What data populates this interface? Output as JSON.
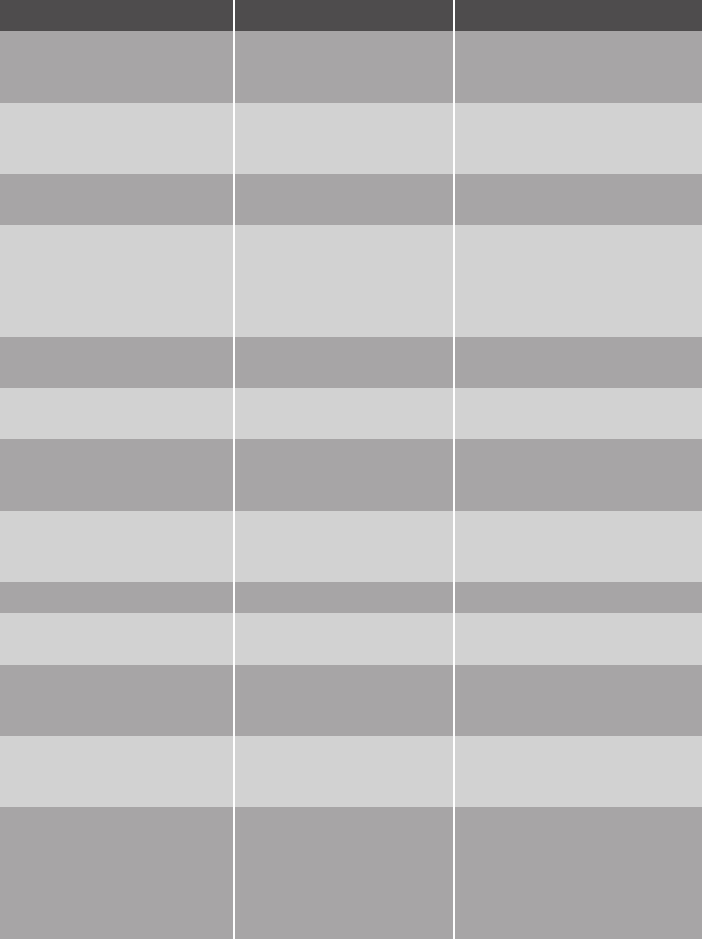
{
  "table": {
    "header": [
      "",
      "",
      ""
    ],
    "rows": [
      {
        "shade": "dark",
        "cells": [
          "",
          "",
          ""
        ]
      },
      {
        "shade": "light",
        "cells": [
          "",
          "",
          ""
        ]
      },
      {
        "shade": "dark",
        "cells": [
          "",
          "",
          ""
        ]
      },
      {
        "shade": "light",
        "cells": [
          "",
          "",
          ""
        ],
        "marks": [
          "0",
          "0"
        ]
      },
      {
        "shade": "dark",
        "cells": [
          "",
          "",
          ""
        ]
      },
      {
        "shade": "light",
        "cells": [
          "",
          "",
          ""
        ]
      },
      {
        "shade": "dark",
        "cells": [
          "",
          "",
          ""
        ]
      },
      {
        "shade": "light",
        "cells": [
          "",
          "",
          ""
        ]
      },
      {
        "shade": "dark",
        "cells": [
          "",
          "",
          ""
        ]
      },
      {
        "shade": "light",
        "cells": [
          "",
          "",
          ""
        ]
      },
      {
        "shade": "dark",
        "cells": [
          "",
          "",
          ""
        ]
      },
      {
        "shade": "light",
        "cells": [
          "",
          "",
          ""
        ]
      },
      {
        "shade": "dark",
        "cells": [
          "",
          "",
          ""
        ]
      }
    ]
  },
  "colors": {
    "header": "#4e4c4d",
    "dark_row": "#a7a5a6",
    "light_row": "#d2d2d2",
    "divider": "#ffffff"
  }
}
